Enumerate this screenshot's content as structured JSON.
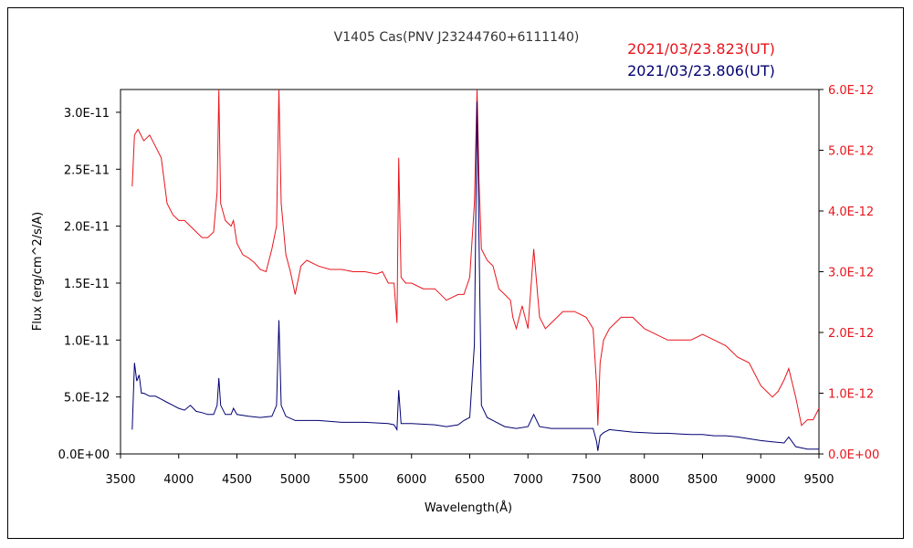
{
  "chart_data": {
    "type": "line",
    "title": "V1405 Cas(PNV J23244760+6111140)",
    "xlabel": "Wavelength(Å)",
    "ylabel": "Flux (erg/cm^2/s/A)",
    "xlim": [
      3500,
      9500
    ],
    "ylim_left": [
      0,
      3.2e-11
    ],
    "ylim_right": [
      0,
      6e-12
    ],
    "x_ticks": [
      3500,
      4000,
      4500,
      5000,
      5500,
      6000,
      6500,
      7000,
      7500,
      8000,
      8500,
      9000,
      9500
    ],
    "x_tick_labels": [
      "3500",
      "4000",
      "4500",
      "5000",
      "5500",
      "6000",
      "6500",
      "7000",
      "7500",
      "8000",
      "8500",
      "9000",
      "9500"
    ],
    "y_left_ticks": [
      0,
      5e-12,
      1e-11,
      1.5e-11,
      2e-11,
      2.5e-11,
      3e-11
    ],
    "y_left_tick_labels": [
      "0.0E+00",
      "5.0E-12",
      "1.0E-11",
      "1.5E-11",
      "2.0E-11",
      "2.5E-11",
      "3.0E-11"
    ],
    "y_right_ticks": [
      0,
      1e-12,
      2e-12,
      3e-12,
      4e-12,
      5e-12,
      6e-12
    ],
    "y_right_tick_labels": [
      "0.0E+00",
      "1.0E-12",
      "2.0E-12",
      "3.0E-12",
      "4.0E-12",
      "5.0E-12",
      "6.0E-12"
    ],
    "grid": false,
    "legend_position": "top-right",
    "series": [
      {
        "name": "2021/03/23.823(UT)",
        "color": "#e8141b",
        "axis": "left",
        "x": [
          3600,
          3620,
          3650,
          3700,
          3750,
          3800,
          3850,
          3900,
          3950,
          4000,
          4050,
          4100,
          4150,
          4200,
          4250,
          4300,
          4330,
          4345,
          4360,
          4400,
          4450,
          4470,
          4500,
          4550,
          4600,
          4650,
          4700,
          4750,
          4800,
          4840,
          4861,
          4880,
          4920,
          4960,
          5000,
          5050,
          5100,
          5200,
          5300,
          5400,
          5500,
          5600,
          5700,
          5750,
          5800,
          5850,
          5875,
          5890,
          5910,
          5950,
          6000,
          6100,
          6200,
          6300,
          6400,
          6450,
          6500,
          6540,
          6563,
          6580,
          6600,
          6650,
          6700,
          6750,
          6800,
          6850,
          6870,
          6900,
          6950,
          7000,
          7050,
          7100,
          7150,
          7200,
          7300,
          7400,
          7500,
          7560,
          7590,
          7600,
          7620,
          7650,
          7700,
          7750,
          7800,
          7900,
          8000,
          8100,
          8200,
          8300,
          8400,
          8500,
          8600,
          8700,
          8800,
          8900,
          9000,
          9050,
          9100,
          9150,
          9200,
          9240,
          9300,
          9350,
          9400,
          9450,
          9500
        ],
        "y": [
          2.35e-11,
          2.8e-11,
          2.85e-11,
          2.75e-11,
          2.8e-11,
          2.7e-11,
          2.6e-11,
          2.2e-11,
          2.1e-11,
          2.05e-11,
          2.05e-11,
          2e-11,
          1.95e-11,
          1.9e-11,
          1.9e-11,
          1.95e-11,
          2.3e-11,
          3.2e-11,
          2.2e-11,
          2.05e-11,
          2e-11,
          2.05e-11,
          1.85e-11,
          1.75e-11,
          1.72e-11,
          1.68e-11,
          1.62e-11,
          1.6e-11,
          1.8e-11,
          2e-11,
          3.2e-11,
          2.2e-11,
          1.75e-11,
          1.6e-11,
          1.4e-11,
          1.65e-11,
          1.7e-11,
          1.65e-11,
          1.62e-11,
          1.62e-11,
          1.6e-11,
          1.6e-11,
          1.58e-11,
          1.6e-11,
          1.5e-11,
          1.5e-11,
          1.15e-11,
          2.6e-11,
          1.55e-11,
          1.5e-11,
          1.5e-11,
          1.45e-11,
          1.45e-11,
          1.35e-11,
          1.4e-11,
          1.4e-11,
          1.55e-11,
          2.2e-11,
          3.2e-11,
          2.4e-11,
          1.8e-11,
          1.7e-11,
          1.65e-11,
          1.45e-11,
          1.4e-11,
          1.35e-11,
          1.2e-11,
          1.1e-11,
          1.3e-11,
          1.1e-11,
          1.8e-11,
          1.2e-11,
          1.1e-11,
          1.15e-11,
          1.25e-11,
          1.25e-11,
          1.2e-11,
          1.1e-11,
          6e-12,
          2.5e-12,
          8e-12,
          1e-11,
          1.1e-11,
          1.15e-11,
          1.2e-11,
          1.2e-11,
          1.1e-11,
          1.05e-11,
          1e-11,
          1e-11,
          1e-11,
          1.05e-11,
          1e-11,
          9.5e-12,
          8.5e-12,
          8e-12,
          6e-12,
          5.5e-12,
          5e-12,
          5.5e-12,
          6.5e-12,
          7.5e-12,
          5e-12,
          2.5e-12,
          3e-12,
          3e-12,
          4e-12
        ]
      },
      {
        "name": "2021/03/23.806(UT)",
        "color": "#000070",
        "axis": "right",
        "x": [
          3600,
          3620,
          3640,
          3660,
          3680,
          3700,
          3750,
          3800,
          3850,
          3900,
          3950,
          4000,
          4050,
          4100,
          4150,
          4200,
          4250,
          4300,
          4330,
          4345,
          4360,
          4400,
          4450,
          4470,
          4500,
          4600,
          4700,
          4800,
          4840,
          4861,
          4880,
          4920,
          5000,
          5200,
          5400,
          5600,
          5800,
          5850,
          5875,
          5890,
          5910,
          5950,
          6000,
          6200,
          6300,
          6400,
          6450,
          6500,
          6540,
          6563,
          6580,
          6600,
          6650,
          6700,
          6800,
          6900,
          7000,
          7050,
          7100,
          7200,
          7300,
          7400,
          7500,
          7560,
          7590,
          7600,
          7620,
          7650,
          7700,
          7800,
          7900,
          8000,
          8100,
          8200,
          8300,
          8400,
          8500,
          8600,
          8700,
          8800,
          8900,
          9000,
          9100,
          9200,
          9240,
          9300,
          9400,
          9500
        ],
        "y": [
          4e-13,
          1.5e-12,
          1.2e-12,
          1.3e-12,
          1e-12,
          1e-12,
          9.5e-13,
          9.5e-13,
          9e-13,
          8.5e-13,
          8e-13,
          7.5e-13,
          7.2e-13,
          8e-13,
          7e-13,
          6.8e-13,
          6.5e-13,
          6.5e-13,
          8e-13,
          1.25e-12,
          8e-13,
          6.5e-13,
          6.5e-13,
          7.5e-13,
          6.5e-13,
          6.2e-13,
          6e-13,
          6.2e-13,
          8e-13,
          2.2e-12,
          8e-13,
          6.2e-13,
          5.5e-13,
          5.5e-13,
          5.2e-13,
          5.2e-13,
          5e-13,
          4.8e-13,
          4e-13,
          1.05e-12,
          5e-13,
          5e-13,
          5e-13,
          4.8e-13,
          4.5e-13,
          4.8e-13,
          5.5e-13,
          6e-13,
          1.8e-12,
          5.8e-12,
          3.5e-12,
          8e-13,
          6e-13,
          5.5e-13,
          4.5e-13,
          4.2e-13,
          4.5e-13,
          6.5e-13,
          4.5e-13,
          4.2e-13,
          4.2e-13,
          4.2e-13,
          4.2e-13,
          4.2e-13,
          2e-13,
          5e-14,
          3e-13,
          3.5e-13,
          4e-13,
          3.8e-13,
          3.6e-13,
          3.5e-13,
          3.4e-13,
          3.4e-13,
          3.3e-13,
          3.2e-13,
          3.2e-13,
          3e-13,
          3e-13,
          2.8e-13,
          2.5e-13,
          2.2e-13,
          2e-13,
          1.8e-13,
          2.8e-13,
          1.2e-13,
          8e-14,
          8e-14
        ]
      }
    ]
  }
}
